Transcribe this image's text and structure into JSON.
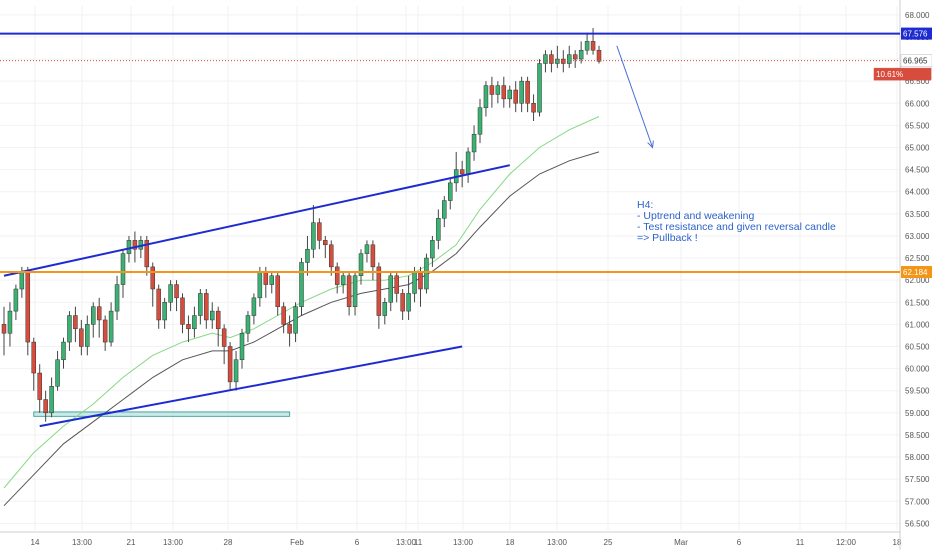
{
  "chart_data": {
    "type": "candlestick",
    "timeframe": "H4",
    "price_axis": {
      "min": 56.5,
      "max": 68.0,
      "ticks": [
        "68.000",
        "67.500",
        "67.000",
        "66.500",
        "66.000",
        "65.500",
        "65.000",
        "64.500",
        "64.000",
        "63.500",
        "63.000",
        "62.500",
        "62.000",
        "61.500",
        "61.000",
        "60.500",
        "60.000",
        "59.500",
        "59.000",
        "58.500",
        "58.000",
        "57.500",
        "57.000",
        "56.500"
      ]
    },
    "time_axis": {
      "labels": [
        "14",
        "13:00",
        "21",
        "13:00",
        "28",
        "Feb",
        "6",
        "13:00",
        "11",
        "13:00",
        "18",
        "13:00",
        "25",
        "Mar",
        "6",
        "11",
        "12:00",
        "18"
      ],
      "last_bar_index": 100
    },
    "candles": [
      [
        61.0,
        60.8,
        60.3,
        61.4
      ],
      [
        60.8,
        61.3,
        60.5,
        61.5
      ],
      [
        61.3,
        61.8,
        61.1,
        61.9
      ],
      [
        61.8,
        62.2,
        61.6,
        62.3
      ],
      [
        62.2,
        60.6,
        60.3,
        62.3
      ],
      [
        60.6,
        59.9,
        59.5,
        60.7
      ],
      [
        59.9,
        59.3,
        59.0,
        60.1
      ],
      [
        59.3,
        59.0,
        58.8,
        59.5
      ],
      [
        59.0,
        59.6,
        58.9,
        59.8
      ],
      [
        59.6,
        60.2,
        59.5,
        60.4
      ],
      [
        60.2,
        60.6,
        60.0,
        60.7
      ],
      [
        60.6,
        61.2,
        60.4,
        61.3
      ],
      [
        61.2,
        60.9,
        60.6,
        61.4
      ],
      [
        60.9,
        60.5,
        60.3,
        61.1
      ],
      [
        60.5,
        61.0,
        60.3,
        61.2
      ],
      [
        61.0,
        61.4,
        60.7,
        61.5
      ],
      [
        61.4,
        61.1,
        60.7,
        61.6
      ],
      [
        61.1,
        60.6,
        60.4,
        61.2
      ],
      [
        60.6,
        61.3,
        60.5,
        61.5
      ],
      [
        61.3,
        61.9,
        61.1,
        62.1
      ],
      [
        61.9,
        62.6,
        61.6,
        62.7
      ],
      [
        62.6,
        62.9,
        62.4,
        63.0
      ],
      [
        62.9,
        62.7,
        62.4,
        63.1
      ],
      [
        62.7,
        62.9,
        62.5,
        63.0
      ],
      [
        62.9,
        62.3,
        62.1,
        63.0
      ],
      [
        62.3,
        61.8,
        61.4,
        62.4
      ],
      [
        61.8,
        61.1,
        60.9,
        61.9
      ],
      [
        61.1,
        61.5,
        60.9,
        61.6
      ],
      [
        61.5,
        61.9,
        61.3,
        62.0
      ],
      [
        61.9,
        61.6,
        61.3,
        62.0
      ],
      [
        61.6,
        61.0,
        60.8,
        61.7
      ],
      [
        61.0,
        60.9,
        60.6,
        61.2
      ],
      [
        60.9,
        61.2,
        60.7,
        61.4
      ],
      [
        61.2,
        61.7,
        61.0,
        61.8
      ],
      [
        61.7,
        61.1,
        60.9,
        61.8
      ],
      [
        61.1,
        61.3,
        60.9,
        61.5
      ],
      [
        61.3,
        60.9,
        60.5,
        61.4
      ],
      [
        60.9,
        60.5,
        60.1,
        61.0
      ],
      [
        60.5,
        59.7,
        59.5,
        60.6
      ],
      [
        59.7,
        60.2,
        59.5,
        60.4
      ],
      [
        60.2,
        60.8,
        60.0,
        60.9
      ],
      [
        60.8,
        61.2,
        60.6,
        61.3
      ],
      [
        61.2,
        61.6,
        61.0,
        61.7
      ],
      [
        61.6,
        62.2,
        61.4,
        62.3
      ],
      [
        62.2,
        61.9,
        61.6,
        62.3
      ],
      [
        61.9,
        62.1,
        61.7,
        62.2
      ],
      [
        62.1,
        61.4,
        61.2,
        62.2
      ],
      [
        61.4,
        61.0,
        60.8,
        61.5
      ],
      [
        61.0,
        60.8,
        60.5,
        61.2
      ],
      [
        60.8,
        61.4,
        60.6,
        61.5
      ],
      [
        61.4,
        62.4,
        61.2,
        62.5
      ],
      [
        62.4,
        62.7,
        62.1,
        63.0
      ],
      [
        62.7,
        63.3,
        62.5,
        63.7
      ],
      [
        63.3,
        62.9,
        62.7,
        63.4
      ],
      [
        62.9,
        62.8,
        62.5,
        63.0
      ],
      [
        62.8,
        62.3,
        62.1,
        62.9
      ],
      [
        62.3,
        61.9,
        61.7,
        62.4
      ],
      [
        61.9,
        62.1,
        61.7,
        62.2
      ],
      [
        62.1,
        61.4,
        61.2,
        62.2
      ],
      [
        61.4,
        62.1,
        61.2,
        62.2
      ],
      [
        62.1,
        62.6,
        61.9,
        62.7
      ],
      [
        62.6,
        62.8,
        62.4,
        62.9
      ],
      [
        62.8,
        62.3,
        62.0,
        62.9
      ],
      [
        62.3,
        61.2,
        60.9,
        62.4
      ],
      [
        61.2,
        61.5,
        61.0,
        61.6
      ],
      [
        61.5,
        62.1,
        61.3,
        62.2
      ],
      [
        62.1,
        61.7,
        61.5,
        62.2
      ],
      [
        61.7,
        61.3,
        61.1,
        61.8
      ],
      [
        61.3,
        61.7,
        61.1,
        62.1
      ],
      [
        61.7,
        62.2,
        61.5,
        62.3
      ],
      [
        62.2,
        61.8,
        61.4,
        62.3
      ],
      [
        61.8,
        62.5,
        61.7,
        62.6
      ],
      [
        62.5,
        62.9,
        62.3,
        63.0
      ],
      [
        62.9,
        63.4,
        62.7,
        63.6
      ],
      [
        63.4,
        63.8,
        63.2,
        63.9
      ],
      [
        63.8,
        64.2,
        63.6,
        64.3
      ],
      [
        64.2,
        64.5,
        64.0,
        64.9
      ],
      [
        64.5,
        64.4,
        64.1,
        64.7
      ],
      [
        64.4,
        64.9,
        64.2,
        65.0
      ],
      [
        64.9,
        65.3,
        64.7,
        65.5
      ],
      [
        65.3,
        65.9,
        65.1,
        66.1
      ],
      [
        65.9,
        66.4,
        65.7,
        66.5
      ],
      [
        66.4,
        66.2,
        65.9,
        66.6
      ],
      [
        66.2,
        66.4,
        66.0,
        66.5
      ],
      [
        66.4,
        66.1,
        65.9,
        66.6
      ],
      [
        66.1,
        66.3,
        65.9,
        66.4
      ],
      [
        66.3,
        66.0,
        65.8,
        66.5
      ],
      [
        66.0,
        66.5,
        65.8,
        66.6
      ],
      [
        66.5,
        66.0,
        65.8,
        66.6
      ],
      [
        66.0,
        65.8,
        65.6,
        66.2
      ],
      [
        65.8,
        66.9,
        65.7,
        67.0
      ],
      [
        66.9,
        67.1,
        66.7,
        67.2
      ],
      [
        67.1,
        66.9,
        66.7,
        67.2
      ],
      [
        66.9,
        67.0,
        66.8,
        67.3
      ],
      [
        67.0,
        66.9,
        66.7,
        67.2
      ],
      [
        66.9,
        67.1,
        66.8,
        67.3
      ],
      [
        67.1,
        67.0,
        66.8,
        67.2
      ],
      [
        67.0,
        67.2,
        66.9,
        67.4
      ],
      [
        67.2,
        67.4,
        67.1,
        67.6
      ],
      [
        67.4,
        67.2,
        67.1,
        67.7
      ],
      [
        67.2,
        66.95,
        66.9,
        67.3
      ]
    ],
    "moving_averages": [
      {
        "name": "",
        "color": "#86d886",
        "points": [
          [
            0,
            57.3
          ],
          [
            5,
            58.1
          ],
          [
            10,
            58.7
          ],
          [
            15,
            59.2
          ],
          [
            20,
            59.8
          ],
          [
            25,
            60.3
          ],
          [
            30,
            60.6
          ],
          [
            35,
            60.8
          ],
          [
            38,
            60.7
          ],
          [
            42,
            60.9
          ],
          [
            46,
            61.2
          ],
          [
            50,
            61.5
          ],
          [
            55,
            61.8
          ],
          [
            60,
            62.0
          ],
          [
            64,
            62.0
          ],
          [
            68,
            62.1
          ],
          [
            72,
            62.4
          ],
          [
            76,
            62.8
          ],
          [
            80,
            63.6
          ],
          [
            85,
            64.4
          ],
          [
            90,
            65.0
          ],
          [
            95,
            65.4
          ],
          [
            100,
            65.7
          ]
        ]
      },
      {
        "name": "",
        "color": "#555555",
        "points": [
          [
            0,
            56.9
          ],
          [
            5,
            57.6
          ],
          [
            10,
            58.3
          ],
          [
            15,
            58.8
          ],
          [
            20,
            59.3
          ],
          [
            25,
            59.8
          ],
          [
            30,
            60.2
          ],
          [
            35,
            60.4
          ],
          [
            38,
            60.4
          ],
          [
            42,
            60.6
          ],
          [
            46,
            60.9
          ],
          [
            50,
            61.2
          ],
          [
            55,
            61.5
          ],
          [
            60,
            61.7
          ],
          [
            64,
            61.8
          ],
          [
            68,
            61.9
          ],
          [
            72,
            62.2
          ],
          [
            76,
            62.6
          ],
          [
            80,
            63.2
          ],
          [
            85,
            63.9
          ],
          [
            90,
            64.4
          ],
          [
            95,
            64.7
          ],
          [
            100,
            64.9
          ]
        ]
      }
    ],
    "horizontal_lines": [
      {
        "price": 67.576,
        "label": "67.576",
        "color": "#1d2bd1"
      },
      {
        "price": 62.184,
        "label": "62.184",
        "color": "#f39516"
      },
      {
        "price": 66.965,
        "label": "66.965",
        "color": "#d74d3d",
        "style": "dotted"
      }
    ],
    "channel_lines": [
      {
        "from": [
          0,
          62.1
        ],
        "to": [
          85,
          64.6
        ],
        "color": "#1d2bd1"
      },
      {
        "from": [
          6,
          58.7
        ],
        "to": [
          77,
          60.5
        ],
        "color": "#1d2bd1"
      }
    ],
    "support_zone": {
      "from_bar": 5,
      "to_bar": 48,
      "low": 58.92,
      "high": 59.02,
      "color": "#6ec8c2"
    },
    "forecast_arrow": {
      "from": [
        103,
        67.3
      ],
      "to": [
        109,
        65.0
      ],
      "color": "#4a6fd8"
    },
    "price_labels": [
      {
        "price": 66.965,
        "text": "66.965",
        "bg": "#ffffff",
        "fg": "#333333"
      },
      {
        "price": 66.951,
        "text": "66.951",
        "bg": "#ffffff",
        "fg": "#333333"
      },
      {
        "price": 66.75,
        "text": "10.61%",
        "bg": "#d74d3d",
        "fg": "#ffffff"
      }
    ],
    "annotation": {
      "lines": [
        "H4:",
        "- Uptrend and weakening",
        "- Test resistance and given reversal candle",
        "=> Pullback !"
      ],
      "color": "#2c63c8"
    },
    "colors": {
      "up": "#3bb273",
      "down": "#d74d3d",
      "grid": "#f2f2f2",
      "axis_text": "#555555"
    }
  }
}
